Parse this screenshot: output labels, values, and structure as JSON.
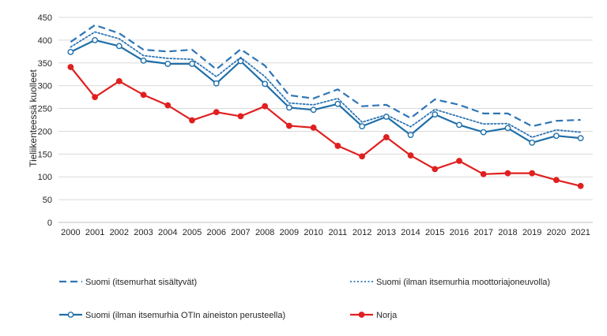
{
  "chart_data": {
    "type": "line",
    "title": "",
    "xlabel": "",
    "ylabel": "Tieliikenteessä kuolleet",
    "ylim": [
      0,
      450
    ],
    "yticks": [
      0,
      50,
      100,
      150,
      200,
      250,
      300,
      350,
      400,
      450
    ],
    "grid": "horizontal",
    "legend_position": "bottom",
    "categories": [
      "2000",
      "2001",
      "2002",
      "2003",
      "2004",
      "2005",
      "2006",
      "2007",
      "2008",
      "2009",
      "2010",
      "2011",
      "2012",
      "2013",
      "2014",
      "2015",
      "2016",
      "2017",
      "2018",
      "2019",
      "2020",
      "2021"
    ],
    "series": [
      {
        "name": "Suomi (itsemurhat sisältyvät)",
        "color": "#2e75b6",
        "style": "dashed",
        "marker": "none",
        "values": [
          396,
          433,
          415,
          379,
          375,
          379,
          336,
          380,
          344,
          279,
          272,
          292,
          255,
          258,
          229,
          270,
          258,
          239,
          239,
          211,
          223,
          225
        ]
      },
      {
        "name": "Suomi (ilman itsemurhia moottoriajoneuvolla)",
        "color": "#2e75b6",
        "style": "dotted",
        "marker": "none",
        "values": [
          385,
          418,
          403,
          366,
          360,
          358,
          320,
          362,
          320,
          262,
          258,
          272,
          220,
          236,
          210,
          248,
          232,
          216,
          217,
          187,
          203,
          198
        ]
      },
      {
        "name": "Suomi (ilman itsemurhia OTIn aineiston perusteella)",
        "color": "#1f6fa8",
        "style": "solid",
        "marker": "open-circle",
        "values": [
          374,
          400,
          387,
          355,
          348,
          348,
          305,
          354,
          304,
          252,
          247,
          260,
          211,
          232,
          192,
          237,
          214,
          198,
          207,
          175,
          190,
          185
        ]
      },
      {
        "name": "Norja",
        "color": "#e02020",
        "style": "solid",
        "marker": "filled-circle",
        "values": [
          341,
          275,
          310,
          280,
          257,
          224,
          242,
          233,
          255,
          212,
          208,
          168,
          145,
          187,
          147,
          117,
          135,
          106,
          108,
          108,
          93,
          80
        ]
      }
    ]
  }
}
